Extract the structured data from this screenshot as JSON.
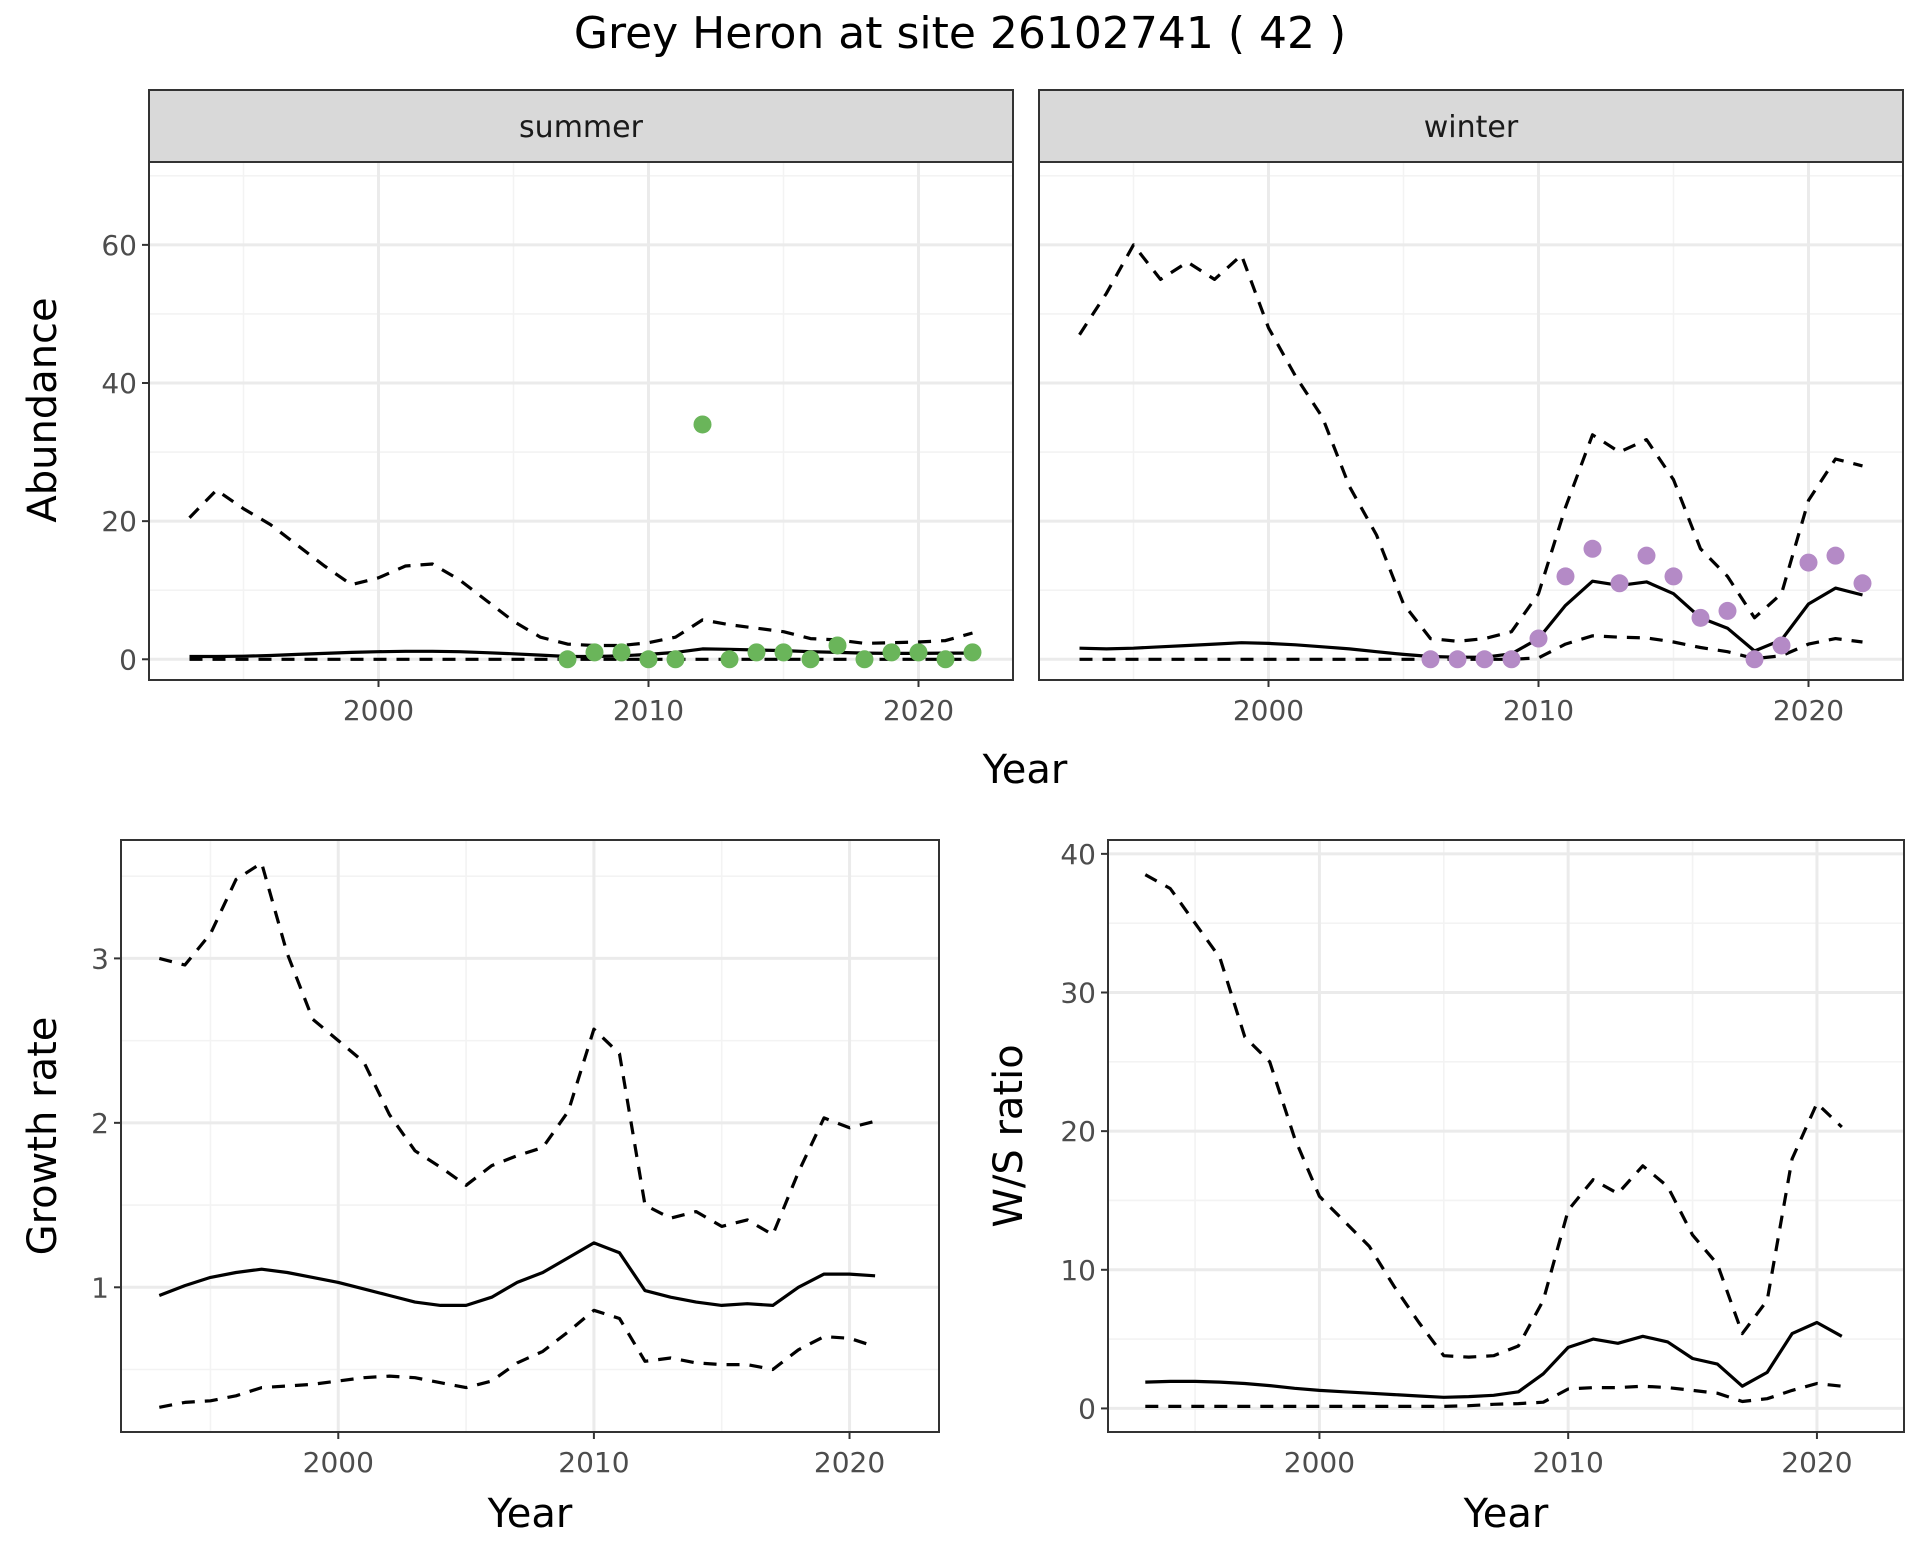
{
  "figure": {
    "title": "Grey Heron at site 26102741 ( 42 )"
  },
  "chart_data": [
    {
      "id": "abundance",
      "type": "line",
      "facets": [
        "summer",
        "winter"
      ],
      "xlabel": "Year",
      "ylabel": "Abundance",
      "xlim": [
        1991.5,
        2023.5
      ],
      "ylim": [
        -3,
        72
      ],
      "xticks": [
        2000,
        2010,
        2020
      ],
      "yticks": [
        0,
        20,
        40,
        60
      ],
      "grid": true,
      "point_colors": {
        "summer": "#6ab55a",
        "winter": "#b48ac6"
      },
      "panels": [
        {
          "facet": "summer",
          "x": [
            1993,
            1994,
            1995,
            1996,
            1997,
            1998,
            1999,
            2000,
            2001,
            2002,
            2003,
            2004,
            2005,
            2006,
            2007,
            2008,
            2009,
            2010,
            2011,
            2012,
            2013,
            2014,
            2015,
            2016,
            2017,
            2018,
            2019,
            2020,
            2021,
            2022
          ],
          "estimate": [
            0.4,
            0.4,
            0.45,
            0.55,
            0.7,
            0.85,
            1.0,
            1.1,
            1.15,
            1.15,
            1.1,
            0.95,
            0.8,
            0.6,
            0.4,
            0.4,
            0.5,
            0.7,
            1.0,
            1.5,
            1.45,
            1.35,
            1.25,
            1.1,
            1.0,
            0.9,
            0.85,
            0.85,
            0.9,
            0.9
          ],
          "upper": [
            20.5,
            24.5,
            21.8,
            19.5,
            16.5,
            13.5,
            10.8,
            11.8,
            13.5,
            13.8,
            11.5,
            8.5,
            5.5,
            3.2,
            2.2,
            2.0,
            2.0,
            2.4,
            3.2,
            5.7,
            5.0,
            4.5,
            4.0,
            3.0,
            2.8,
            2.3,
            2.4,
            2.5,
            2.7,
            3.8
          ],
          "lower": [
            0,
            0,
            0,
            0,
            0,
            0,
            0,
            0,
            0,
            0,
            0,
            0,
            0,
            0,
            0,
            0,
            0,
            0,
            0,
            0,
            0,
            0,
            0,
            0,
            0,
            0,
            0,
            0,
            0,
            0
          ],
          "observed_x": [
            2007,
            2008,
            2009,
            2010,
            2011,
            2012,
            2013,
            2014,
            2015,
            2016,
            2017,
            2018,
            2019,
            2020,
            2021,
            2022
          ],
          "observed_y": [
            0,
            1,
            1,
            0,
            0,
            34,
            0,
            1,
            1,
            0,
            2,
            0,
            1,
            1,
            0,
            1
          ]
        },
        {
          "facet": "winter",
          "x": [
            1993,
            1994,
            1995,
            1996,
            1997,
            1998,
            1999,
            2000,
            2001,
            2002,
            2003,
            2004,
            2005,
            2006,
            2007,
            2008,
            2009,
            2010,
            2011,
            2012,
            2013,
            2014,
            2015,
            2016,
            2017,
            2018,
            2019,
            2020,
            2021,
            2022
          ],
          "estimate": [
            1.6,
            1.5,
            1.6,
            1.8,
            2.0,
            2.2,
            2.4,
            2.3,
            2.1,
            1.8,
            1.5,
            1.1,
            0.7,
            0.4,
            0.3,
            0.3,
            0.8,
            3.0,
            7.8,
            11.3,
            10.7,
            11.2,
            9.5,
            6.0,
            4.5,
            1.2,
            2.8,
            8.0,
            10.3,
            9.3
          ],
          "upper": [
            47,
            53,
            60,
            55,
            57.5,
            55,
            58.5,
            48,
            41,
            35,
            25,
            18,
            8,
            3,
            2.6,
            3.0,
            4.0,
            9.5,
            22,
            32.5,
            30,
            31.8,
            26,
            16,
            12,
            6,
            9.5,
            23,
            29,
            28
          ],
          "lower": [
            0,
            0,
            0,
            0,
            0,
            0,
            0,
            0,
            0,
            0,
            0,
            0,
            0,
            0,
            0,
            0,
            0,
            0.2,
            2.2,
            3.4,
            3.2,
            3.1,
            2.5,
            1.7,
            1.1,
            0.1,
            0.5,
            2.2,
            3.0,
            2.5
          ],
          "observed_x": [
            2006,
            2007,
            2008,
            2009,
            2010,
            2011,
            2012,
            2013,
            2014,
            2015,
            2016,
            2017,
            2018,
            2019,
            2020,
            2021,
            2022
          ],
          "observed_y": [
            0,
            0,
            0,
            0,
            3,
            12,
            16,
            11,
            15,
            12,
            6,
            7,
            0,
            2,
            14,
            15,
            11
          ]
        }
      ]
    },
    {
      "id": "growth",
      "type": "line",
      "xlabel": "Year",
      "ylabel": "Growth rate",
      "xlim": [
        1991.5,
        2023.5
      ],
      "ylim": [
        0.12,
        3.72
      ],
      "xticks": [
        2000,
        2010,
        2020
      ],
      "yticks": [
        1,
        2,
        3
      ],
      "grid": true,
      "x": [
        1993,
        1994,
        1995,
        1996,
        1997,
        1998,
        1999,
        2000,
        2001,
        2002,
        2003,
        2004,
        2005,
        2006,
        2007,
        2008,
        2009,
        2010,
        2011,
        2012,
        2013,
        2014,
        2015,
        2016,
        2017,
        2018,
        2019,
        2020,
        2021
      ],
      "estimate": [
        0.95,
        1.01,
        1.06,
        1.09,
        1.11,
        1.09,
        1.06,
        1.03,
        0.99,
        0.95,
        0.91,
        0.89,
        0.89,
        0.94,
        1.03,
        1.09,
        1.18,
        1.27,
        1.21,
        0.98,
        0.94,
        0.91,
        0.89,
        0.9,
        0.89,
        1.0,
        1.08,
        1.08,
        1.07
      ],
      "upper": [
        3.0,
        2.96,
        3.15,
        3.48,
        3.58,
        3.03,
        2.63,
        2.5,
        2.37,
        2.05,
        1.83,
        1.73,
        1.62,
        1.74,
        1.8,
        1.85,
        2.07,
        2.57,
        2.42,
        1.5,
        1.42,
        1.46,
        1.37,
        1.41,
        1.32,
        1.7,
        2.03,
        1.97,
        2.01
      ],
      "lower": [
        0.27,
        0.3,
        0.31,
        0.34,
        0.39,
        0.4,
        0.41,
        0.43,
        0.45,
        0.46,
        0.45,
        0.42,
        0.39,
        0.43,
        0.54,
        0.61,
        0.73,
        0.86,
        0.81,
        0.55,
        0.57,
        0.54,
        0.53,
        0.53,
        0.5,
        0.62,
        0.7,
        0.69,
        0.64
      ]
    },
    {
      "id": "ws_ratio",
      "type": "line",
      "xlabel": "Year",
      "ylabel": "W/S ratio",
      "xlim": [
        1991.5,
        2023.5
      ],
      "ylim": [
        -1.7,
        41
      ],
      "xticks": [
        2000,
        2010,
        2020
      ],
      "yticks": [
        0,
        10,
        20,
        30,
        40
      ],
      "grid": true,
      "x": [
        1993,
        1994,
        1995,
        1996,
        1997,
        1998,
        1999,
        2000,
        2001,
        2002,
        2003,
        2004,
        2005,
        2006,
        2007,
        2008,
        2009,
        2010,
        2011,
        2012,
        2013,
        2014,
        2015,
        2016,
        2017,
        2018,
        2019,
        2020,
        2021
      ],
      "estimate": [
        1.9,
        1.95,
        1.95,
        1.9,
        1.8,
        1.65,
        1.45,
        1.3,
        1.2,
        1.1,
        1.0,
        0.9,
        0.8,
        0.85,
        0.95,
        1.2,
        2.5,
        4.4,
        5.0,
        4.7,
        5.2,
        4.8,
        3.6,
        3.2,
        1.6,
        2.6,
        5.4,
        6.2,
        5.2
      ],
      "upper": [
        38.5,
        37.5,
        35,
        32.5,
        26.8,
        25,
        19.5,
        15.3,
        13.5,
        11.7,
        8.8,
        6.2,
        3.8,
        3.7,
        3.8,
        4.5,
        7.8,
        14.3,
        16.5,
        15.5,
        17.5,
        16,
        12.5,
        10.4,
        5.4,
        7.8,
        18,
        22,
        20.3
      ],
      "lower": [
        0.15,
        0.15,
        0.15,
        0.15,
        0.15,
        0.15,
        0.15,
        0.15,
        0.15,
        0.15,
        0.15,
        0.15,
        0.15,
        0.2,
        0.3,
        0.35,
        0.45,
        1.4,
        1.5,
        1.5,
        1.6,
        1.5,
        1.3,
        1.1,
        0.5,
        0.7,
        1.3,
        1.8,
        1.6
      ]
    }
  ]
}
